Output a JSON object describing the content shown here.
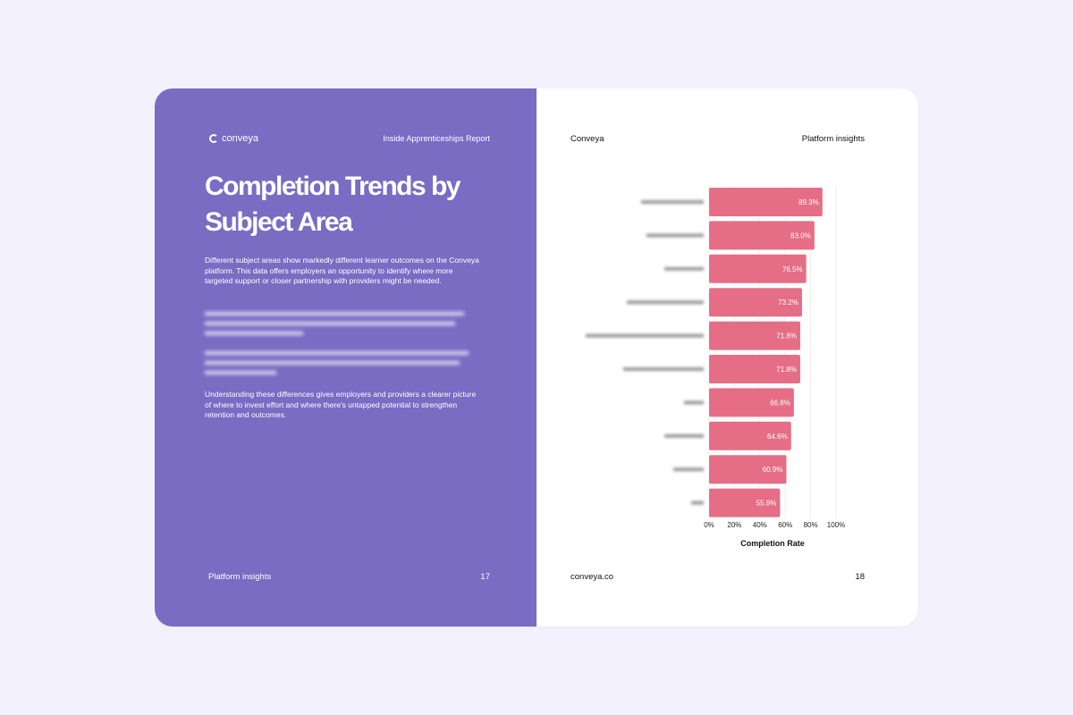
{
  "left_page": {
    "logo_text": "conveya",
    "report_title": "Inside Apprenticeships Report",
    "headline": "Completion Trends by Subject Area",
    "paragraphs": [
      "Different subject areas show markedly different learner outcomes on the Conveya platform. This data offers employers an opportunity to identify where more targeted support or closer partnership with providers might be needed.",
      "Understanding these differences gives employers and providers a clearer picture of where to invest effort and where there's untapped potential to strengthen retention and outcomes."
    ],
    "footer_label": "Platform insights",
    "page_number": "17"
  },
  "right_page": {
    "brand": "Conveya",
    "section": "Platform insights",
    "footer_url": "conveya.co",
    "page_number": "18"
  },
  "chart_data": {
    "type": "bar",
    "orientation": "horizontal",
    "values": [
      89.3,
      83.0,
      76.5,
      73.2,
      71.8,
      71.8,
      66.8,
      64.6,
      60.9,
      55.9
    ],
    "value_labels": [
      "89.3%",
      "83.0%",
      "76.5%",
      "73.2%",
      "71.8%",
      "71.8%",
      "66.8%",
      "64.6%",
      "60.9%",
      "55.9%"
    ],
    "xlim": [
      0,
      100
    ],
    "x_ticks": [
      "0%",
      "20%",
      "40%",
      "60%",
      "80%",
      "100%"
    ],
    "xlabel": "Completion Rate",
    "bar_color": "#e56e86",
    "grid": true
  },
  "colors": {
    "left_page_bg": "#7a6bc3",
    "page_bg": "#f3f1fd"
  }
}
